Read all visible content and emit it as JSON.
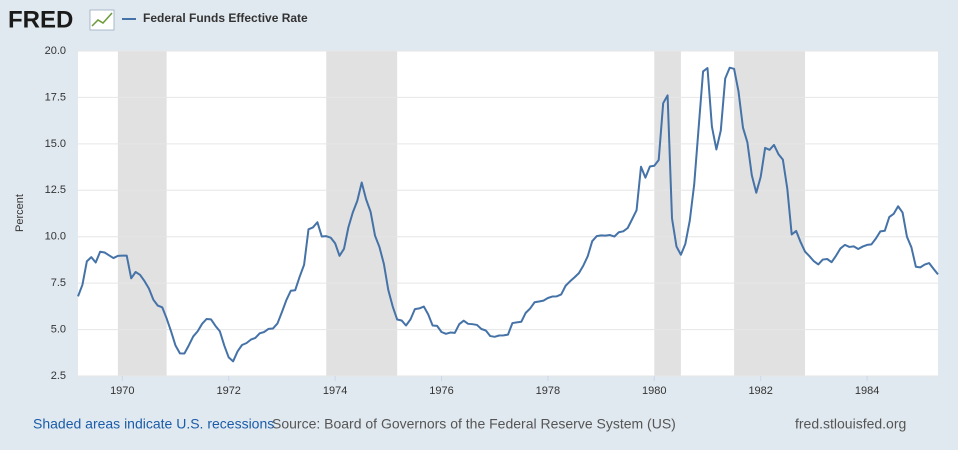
{
  "logo": "FRED",
  "chart_data": {
    "type": "line",
    "y_label": "Percent",
    "x": [
      1969.167,
      1969.25,
      1969.333,
      1969.417,
      1969.5,
      1969.583,
      1969.667,
      1969.75,
      1969.833,
      1969.917,
      1970,
      1970.083,
      1970.167,
      1970.25,
      1970.333,
      1970.417,
      1970.5,
      1970.583,
      1970.667,
      1970.75,
      1970.833,
      1970.917,
      1971,
      1971.083,
      1971.167,
      1971.25,
      1971.333,
      1971.417,
      1971.5,
      1971.583,
      1971.667,
      1971.75,
      1971.833,
      1971.917,
      1972,
      1972.083,
      1972.167,
      1972.25,
      1972.333,
      1972.417,
      1972.5,
      1972.583,
      1972.667,
      1972.75,
      1972.833,
      1972.917,
      1973,
      1973.083,
      1973.167,
      1973.25,
      1973.333,
      1973.417,
      1973.5,
      1973.583,
      1973.667,
      1973.75,
      1973.833,
      1973.917,
      1974,
      1974.083,
      1974.167,
      1974.25,
      1974.333,
      1974.417,
      1974.5,
      1974.583,
      1974.667,
      1974.75,
      1974.833,
      1974.917,
      1975,
      1975.083,
      1975.167,
      1975.25,
      1975.333,
      1975.417,
      1975.5,
      1975.583,
      1975.667,
      1975.75,
      1975.833,
      1975.917,
      1976,
      1976.083,
      1976.167,
      1976.25,
      1976.333,
      1976.417,
      1976.5,
      1976.583,
      1976.667,
      1976.75,
      1976.833,
      1976.917,
      1977,
      1977.083,
      1977.167,
      1977.25,
      1977.333,
      1977.417,
      1977.5,
      1977.583,
      1977.667,
      1977.75,
      1977.833,
      1977.917,
      1978,
      1978.083,
      1978.167,
      1978.25,
      1978.333,
      1978.417,
      1978.5,
      1978.583,
      1978.667,
      1978.75,
      1978.833,
      1978.917,
      1979,
      1979.083,
      1979.167,
      1979.25,
      1979.333,
      1979.417,
      1979.5,
      1979.583,
      1979.667,
      1979.75,
      1979.833,
      1979.917,
      1980,
      1980.083,
      1980.167,
      1980.25,
      1980.333,
      1980.417,
      1980.5,
      1980.583,
      1980.667,
      1980.75,
      1980.833,
      1980.917,
      1981,
      1981.083,
      1981.167,
      1981.25,
      1981.333,
      1981.417,
      1981.5,
      1981.583,
      1981.667,
      1981.75,
      1981.833,
      1981.917,
      1982,
      1982.083,
      1982.167,
      1982.25,
      1982.333,
      1982.417,
      1982.5,
      1982.583,
      1982.667,
      1982.75,
      1982.833,
      1982.917,
      1983,
      1983.083,
      1983.167,
      1983.25,
      1983.333,
      1983.417,
      1983.5,
      1983.583,
      1983.667,
      1983.75,
      1983.833,
      1983.917,
      1984,
      1984.083,
      1984.167,
      1984.25,
      1984.333,
      1984.417,
      1984.5,
      1984.583,
      1984.667,
      1984.75,
      1984.833,
      1984.917,
      1985,
      1985.083,
      1985.167,
      1985.25,
      1985.333
    ],
    "series": [
      {
        "name": "Federal Funds Effective Rate",
        "color": "#4572a7",
        "values": [
          6.79,
          7.41,
          8.67,
          8.9,
          8.61,
          9.19,
          9.15,
          9.0,
          8.85,
          8.97,
          8.98,
          8.98,
          7.76,
          8.1,
          7.95,
          7.61,
          7.21,
          6.61,
          6.29,
          6.2,
          5.6,
          4.9,
          4.14,
          3.72,
          3.71,
          4.15,
          4.63,
          4.91,
          5.31,
          5.57,
          5.55,
          5.2,
          4.91,
          4.14,
          3.5,
          3.29,
          3.83,
          4.17,
          4.27,
          4.46,
          4.55,
          4.8,
          4.87,
          5.04,
          5.06,
          5.33,
          5.94,
          6.58,
          7.09,
          7.12,
          7.84,
          8.49,
          10.4,
          10.5,
          10.78,
          10.01,
          10.03,
          9.95,
          9.65,
          8.97,
          9.35,
          10.51,
          11.31,
          11.93,
          12.92,
          12.01,
          11.34,
          10.06,
          9.45,
          8.53,
          7.13,
          6.24,
          5.54,
          5.49,
          5.22,
          5.55,
          6.1,
          6.14,
          6.24,
          5.82,
          5.22,
          5.2,
          4.87,
          4.77,
          4.84,
          4.82,
          5.29,
          5.48,
          5.31,
          5.29,
          5.25,
          5.03,
          4.95,
          4.65,
          4.61,
          4.68,
          4.69,
          4.73,
          5.35,
          5.39,
          5.42,
          5.9,
          6.14,
          6.47,
          6.51,
          6.56,
          6.7,
          6.78,
          6.79,
          6.89,
          7.36,
          7.6,
          7.81,
          8.04,
          8.45,
          8.96,
          9.76,
          10.03,
          10.07,
          10.06,
          10.09,
          10.01,
          10.24,
          10.29,
          10.47,
          10.94,
          11.43,
          13.77,
          13.18,
          13.78,
          13.82,
          14.13,
          17.19,
          17.61,
          10.98,
          9.47,
          9.03,
          9.61,
          10.87,
          12.81,
          15.85,
          18.9,
          19.08,
          15.93,
          14.7,
          15.72,
          18.52,
          19.1,
          19.04,
          17.82,
          15.87,
          15.08,
          13.31,
          12.37,
          13.22,
          14.78,
          14.68,
          14.94,
          14.45,
          14.15,
          12.59,
          10.12,
          10.31,
          9.71,
          9.2,
          8.95,
          8.68,
          8.51,
          8.77,
          8.8,
          8.63,
          8.98,
          9.37,
          9.56,
          9.45,
          9.48,
          9.34,
          9.47,
          9.56,
          9.59,
          9.91,
          10.29,
          10.32,
          11.06,
          11.23,
          11.64,
          11.3,
          9.99,
          9.43,
          8.38,
          8.35,
          8.5,
          8.58,
          8.27,
          7.97
        ]
      }
    ],
    "recessions": [
      [
        1969.917,
        1970.833
      ],
      [
        1973.833,
        1975.167
      ],
      [
        1980,
        1980.5
      ],
      [
        1981.5,
        1982.833
      ]
    ],
    "recession_color": "#e1e1e1",
    "xlim": [
      1969.167,
      1985.333
    ],
    "xticks": [
      1970,
      1972,
      1974,
      1976,
      1978,
      1980,
      1982,
      1984
    ],
    "ylim": [
      2.5,
      20
    ],
    "yticks": [
      2.5,
      {
        "value": 5,
        "label": "5.0"
      },
      7.5,
      {
        "value": 10,
        "label": "10.0"
      },
      12.5,
      {
        "value": 15,
        "label": "15.0"
      },
      17.5,
      {
        "value": 20,
        "label": "20.0"
      }
    ],
    "grid": true,
    "note": "Shaded areas indicate U.S. recessions",
    "source": "Source: Board of Governors of the Federal Reserve System (US)",
    "site": "fred.stlouisfed.org"
  }
}
